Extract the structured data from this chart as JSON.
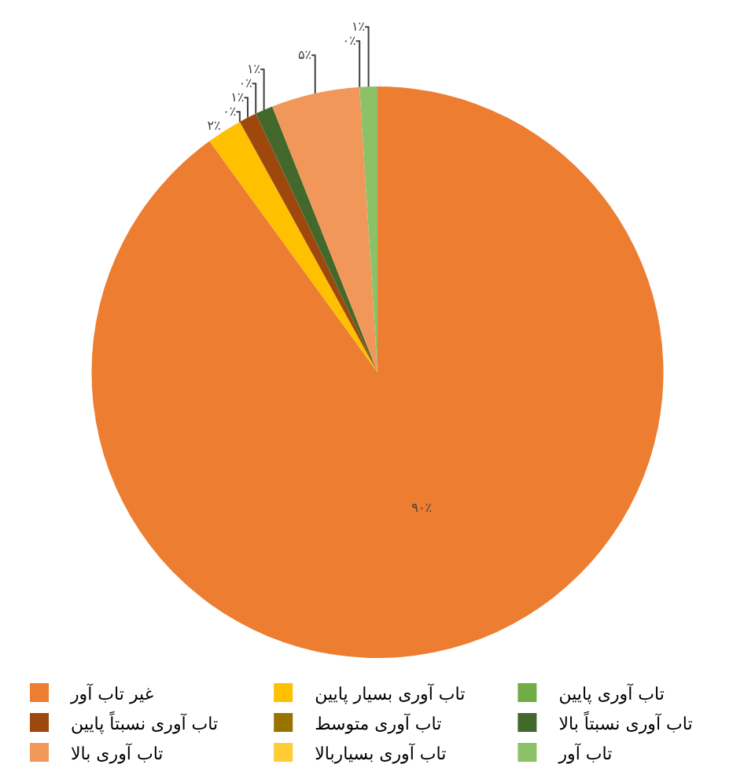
{
  "chart_data": {
    "type": "pie",
    "categories": [
      "غیر تاب آور",
      "تاب آوری بسیار پایین",
      "تاب آوری پایین",
      "تاب آوری نسبتاً پایین",
      "تاب آوری متوسط",
      "تاب آوری نسبتاً بالا",
      "تاب آوری بالا",
      "تاب آوری بسیاربالا",
      "تاب آور"
    ],
    "values": [
      90,
      2,
      0,
      1,
      0,
      1,
      5,
      0,
      1
    ],
    "colors": [
      "#ed7d31",
      "#ffc000",
      "#70ad47",
      "#9e480e",
      "#997300",
      "#43682b",
      "#f1975a",
      "#ffcd33",
      "#8cc168"
    ],
    "value_labels": [
      "۹۰٪",
      "۲٪",
      "۰٪",
      "۱٪",
      "۰٪",
      "۱٪",
      "۵٪",
      "۰٪",
      "۱٪"
    ],
    "legend": "bottom"
  }
}
